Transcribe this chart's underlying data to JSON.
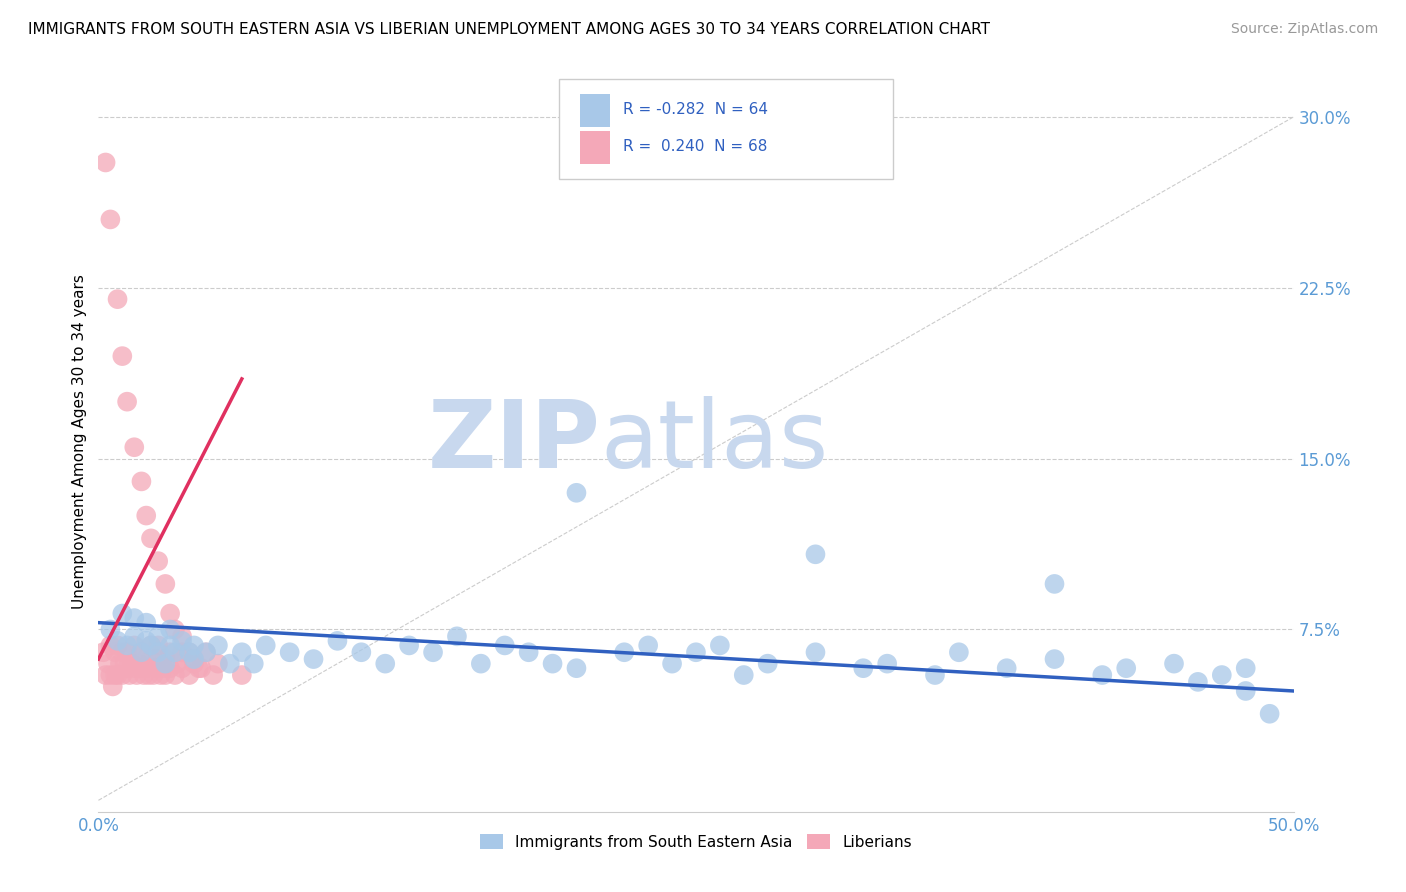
{
  "title": "IMMIGRANTS FROM SOUTH EASTERN ASIA VS LIBERIAN UNEMPLOYMENT AMONG AGES 30 TO 34 YEARS CORRELATION CHART",
  "source": "Source: ZipAtlas.com",
  "ylabel": "Unemployment Among Ages 30 to 34 years",
  "yticks": [
    0.0,
    0.075,
    0.15,
    0.225,
    0.3
  ],
  "ytick_labels": [
    "",
    "7.5%",
    "15.0%",
    "22.5%",
    "30.0%"
  ],
  "xlim": [
    0.0,
    0.5
  ],
  "ylim": [
    -0.005,
    0.32
  ],
  "legend_entries": [
    {
      "label": "R = -0.282  N = 64",
      "color": "#aec6e8"
    },
    {
      "label": "R =  0.240  N = 68",
      "color": "#f4b8c1"
    }
  ],
  "legend_bottom": [
    "Immigrants from South Eastern Asia",
    "Liberians"
  ],
  "blue_color": "#a8c8e8",
  "pink_color": "#f4a8b8",
  "blue_line_color": "#3060c0",
  "pink_line_color": "#e03060",
  "watermark_zip": "ZIP",
  "watermark_atlas": "atlas",
  "watermark_color": "#c8d8ee",
  "grid_color": "#cccccc",
  "background_color": "#ffffff",
  "blue_scatter_x": [
    0.005,
    0.008,
    0.01,
    0.012,
    0.015,
    0.015,
    0.018,
    0.02,
    0.02,
    0.022,
    0.025,
    0.025,
    0.028,
    0.03,
    0.03,
    0.032,
    0.035,
    0.038,
    0.04,
    0.04,
    0.045,
    0.05,
    0.055,
    0.06,
    0.065,
    0.07,
    0.08,
    0.09,
    0.1,
    0.11,
    0.12,
    0.13,
    0.14,
    0.15,
    0.16,
    0.17,
    0.18,
    0.19,
    0.2,
    0.22,
    0.23,
    0.24,
    0.25,
    0.26,
    0.27,
    0.28,
    0.3,
    0.32,
    0.33,
    0.35,
    0.36,
    0.38,
    0.4,
    0.42,
    0.43,
    0.45,
    0.46,
    0.47,
    0.48,
    0.48,
    0.2,
    0.3,
    0.4,
    0.49
  ],
  "blue_scatter_y": [
    0.075,
    0.07,
    0.082,
    0.068,
    0.072,
    0.08,
    0.065,
    0.078,
    0.07,
    0.068,
    0.072,
    0.065,
    0.06,
    0.075,
    0.068,
    0.065,
    0.07,
    0.065,
    0.068,
    0.062,
    0.065,
    0.068,
    0.06,
    0.065,
    0.06,
    0.068,
    0.065,
    0.062,
    0.07,
    0.065,
    0.06,
    0.068,
    0.065,
    0.072,
    0.06,
    0.068,
    0.065,
    0.06,
    0.058,
    0.065,
    0.068,
    0.06,
    0.065,
    0.068,
    0.055,
    0.06,
    0.065,
    0.058,
    0.06,
    0.055,
    0.065,
    0.058,
    0.062,
    0.055,
    0.058,
    0.06,
    0.052,
    0.055,
    0.048,
    0.058,
    0.135,
    0.108,
    0.095,
    0.038
  ],
  "pink_scatter_x": [
    0.002,
    0.003,
    0.004,
    0.005,
    0.005,
    0.006,
    0.007,
    0.007,
    0.008,
    0.008,
    0.009,
    0.01,
    0.01,
    0.011,
    0.012,
    0.012,
    0.013,
    0.014,
    0.015,
    0.015,
    0.016,
    0.017,
    0.018,
    0.018,
    0.019,
    0.02,
    0.02,
    0.021,
    0.022,
    0.022,
    0.023,
    0.024,
    0.025,
    0.025,
    0.026,
    0.027,
    0.028,
    0.028,
    0.03,
    0.03,
    0.032,
    0.033,
    0.035,
    0.035,
    0.038,
    0.04,
    0.042,
    0.045,
    0.048,
    0.05,
    0.003,
    0.005,
    0.008,
    0.01,
    0.012,
    0.015,
    0.018,
    0.02,
    0.022,
    0.025,
    0.028,
    0.03,
    0.032,
    0.035,
    0.038,
    0.04,
    0.043,
    0.06
  ],
  "pink_scatter_y": [
    0.065,
    0.055,
    0.06,
    0.055,
    0.068,
    0.05,
    0.055,
    0.065,
    0.055,
    0.068,
    0.06,
    0.055,
    0.065,
    0.06,
    0.058,
    0.065,
    0.055,
    0.06,
    0.058,
    0.068,
    0.055,
    0.06,
    0.058,
    0.065,
    0.055,
    0.062,
    0.058,
    0.055,
    0.062,
    0.068,
    0.055,
    0.058,
    0.062,
    0.068,
    0.055,
    0.058,
    0.055,
    0.062,
    0.058,
    0.065,
    0.055,
    0.06,
    0.058,
    0.065,
    0.055,
    0.06,
    0.058,
    0.065,
    0.055,
    0.06,
    0.28,
    0.255,
    0.22,
    0.195,
    0.175,
    0.155,
    0.14,
    0.125,
    0.115,
    0.105,
    0.095,
    0.082,
    0.075,
    0.072,
    0.065,
    0.062,
    0.058,
    0.055
  ],
  "blue_trend_x": [
    0.0,
    0.5
  ],
  "blue_trend_y": [
    0.078,
    0.048
  ],
  "pink_trend_x": [
    0.0,
    0.06
  ],
  "pink_trend_y": [
    0.062,
    0.185
  ]
}
